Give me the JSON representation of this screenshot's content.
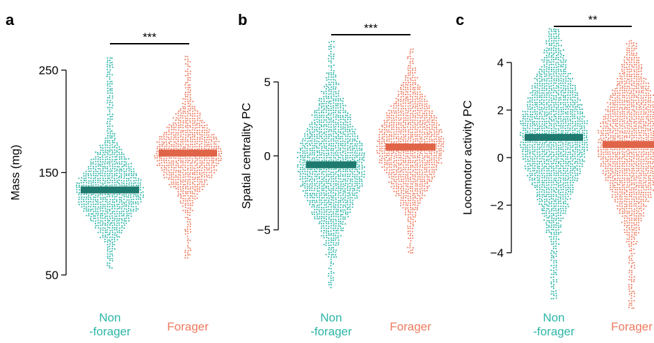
{
  "colors": {
    "nonforager_dots": "#2bb5a6",
    "nonforager_mean": "#1e7a6f",
    "forager_dots": "#ee7a5f",
    "forager_mean": "#e06448",
    "axis": "#000000"
  },
  "chart_data": [
    {
      "type": "beeswarm",
      "panel_label": "a",
      "ylabel": "Mass (mg)",
      "yticks": [
        50,
        150,
        250
      ],
      "ylim": [
        50,
        265
      ],
      "categories": [
        "Non\n-forager",
        "Forager"
      ],
      "significance": "***",
      "series": [
        {
          "name": "Non\n-forager",
          "mean": 133,
          "min": 56,
          "max": 262,
          "q25": 115,
          "median": 132,
          "q75": 152
        },
        {
          "name": "Forager",
          "mean": 169,
          "min": 65,
          "max": 263,
          "q25": 150,
          "median": 168,
          "q75": 185
        }
      ]
    },
    {
      "type": "beeswarm",
      "panel_label": "b",
      "ylabel": "Spatial centrality PC",
      "yticks": [
        -5,
        0,
        5
      ],
      "ylim": [
        -9.2,
        7.5
      ],
      "categories": [
        "Non\n-forager",
        "Forager"
      ],
      "significance": "***",
      "series": [
        {
          "name": "Non\n-forager",
          "mean": -0.6,
          "min": -9.0,
          "max": 7.7,
          "q25": -2.5,
          "median": -0.6,
          "q75": 1.5
        },
        {
          "name": "Forager",
          "mean": 0.6,
          "min": -6.6,
          "max": 7.2,
          "q25": -1.0,
          "median": 0.7,
          "q75": 2.3
        }
      ]
    },
    {
      "type": "beeswarm",
      "panel_label": "c",
      "ylabel": "Locomotor activity PC",
      "yticks": [
        -4,
        -2,
        0,
        2,
        4
      ],
      "ylim": [
        -4.2,
        4.6
      ],
      "categories": [
        "Non\n-forager",
        "Forager"
      ],
      "significance": "**",
      "series": [
        {
          "name": "Non\n-forager",
          "mean": 0.85,
          "min": -6.0,
          "max": 5.4,
          "q25": -0.6,
          "median": 0.9,
          "q75": 2.3
        },
        {
          "name": "Forager",
          "mean": 0.55,
          "min": -6.4,
          "max": 4.9,
          "q25": -0.7,
          "median": 0.6,
          "q75": 2.0
        }
      ]
    }
  ]
}
